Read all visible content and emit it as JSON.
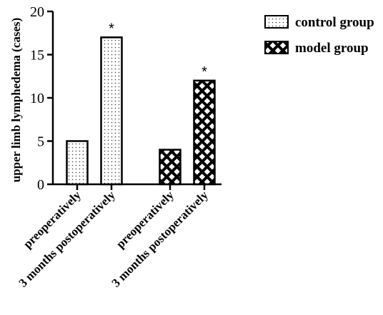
{
  "chart_data": {
    "type": "bar",
    "ylabel": "upper limb lymphedema (cases)",
    "ylim": [
      0,
      20
    ],
    "yticks": [
      0,
      5,
      10,
      15,
      20
    ],
    "categories": [
      "preoperatively",
      "3 months postoperatively",
      "preoperatively",
      "3 months postoperatively"
    ],
    "series": [
      {
        "name": "control group",
        "pattern": "dots",
        "values": [
          5,
          17,
          null,
          null
        ],
        "annotations": [
          "",
          "*",
          "",
          ""
        ]
      },
      {
        "name": "model group",
        "pattern": "crosshatch",
        "values": [
          null,
          null,
          4,
          12
        ],
        "annotations": [
          "",
          "",
          "",
          "*"
        ]
      }
    ],
    "legend_position": "top-right",
    "grid": false
  }
}
